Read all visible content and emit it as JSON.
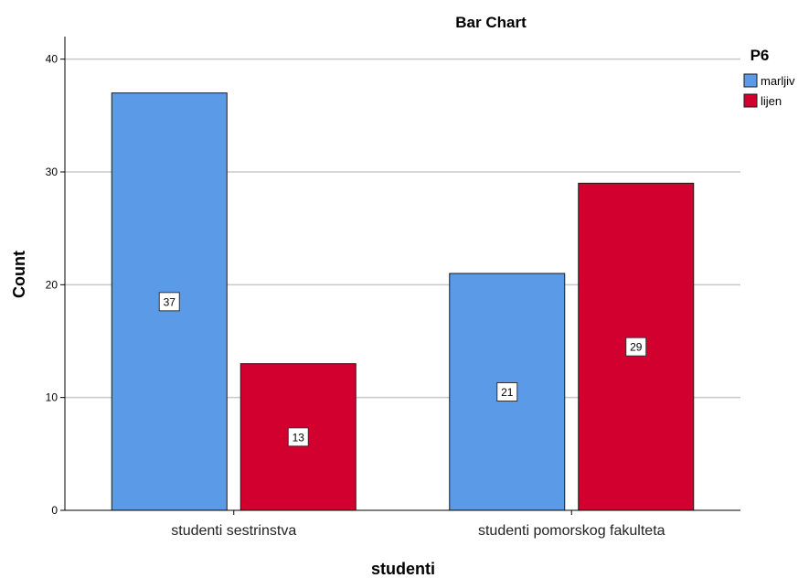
{
  "chart_data": {
    "type": "bar",
    "title": "Bar Chart",
    "xlabel": "studenti",
    "ylabel": "Count",
    "categories": [
      "studenti sestrinstva",
      "studenti pomorskog fakulteta"
    ],
    "series": [
      {
        "name": "marljiv",
        "values": [
          37,
          21
        ],
        "color": "#5a9ae6"
      },
      {
        "name": "lijen",
        "values": [
          13,
          29
        ],
        "color": "#d2002e"
      }
    ],
    "ylim": [
      0,
      42
    ],
    "yticks": [
      0,
      10,
      20,
      30,
      40
    ],
    "grid": true,
    "data_labels": true,
    "legend": {
      "title": "P6",
      "position": "top-right"
    }
  }
}
